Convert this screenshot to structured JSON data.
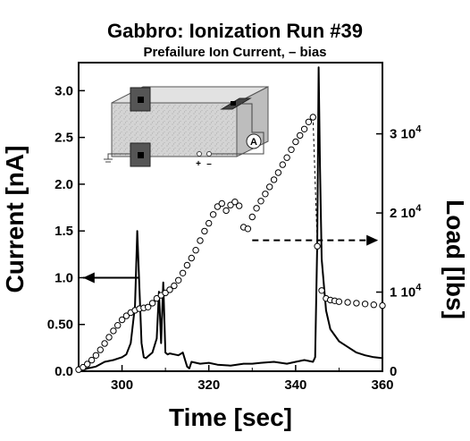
{
  "title": "Gabbro: Ionization Run #39",
  "subtitle": "Prefailure Ion Current, – bias",
  "chart_data": {
    "type": "line",
    "xlabel": "Time [sec]",
    "ylabel": "Current [nA]",
    "y2label": "Load [lbs]",
    "xlim": [
      290,
      360
    ],
    "ylim": [
      0,
      3.3
    ],
    "y2lim": [
      0,
      39000
    ],
    "xticks": [
      "300",
      "320",
      "340",
      "360"
    ],
    "yticks": [
      "0.0",
      "0.50",
      "1.0",
      "1.5",
      "2.0",
      "2.5",
      "3.0"
    ],
    "y2ticks": [
      {
        "base": "0",
        "exp": ""
      },
      {
        "base": "1 10",
        "exp": "4"
      },
      {
        "base": "2 10",
        "exp": "4"
      },
      {
        "base": "3 10",
        "exp": "4"
      }
    ],
    "grid": false,
    "series": [
      {
        "axis": "left",
        "style": "line",
        "x": [
          290,
          292,
          294,
          296,
          298,
          300,
          301,
          302,
          303,
          303.5,
          304,
          304.5,
          305,
          305.5,
          306,
          307,
          308,
          308.5,
          309,
          309.5,
          310,
          310.5,
          311,
          312,
          313,
          314,
          315,
          315.5,
          316,
          318,
          320,
          322,
          325,
          328,
          330,
          332,
          335,
          338,
          340,
          342,
          344,
          344.5,
          345,
          345.3,
          345.6,
          346,
          347,
          348,
          350,
          352,
          354,
          356,
          358,
          360
        ],
        "values": [
          0.0,
          0.03,
          0.05,
          0.1,
          0.12,
          0.15,
          0.18,
          0.3,
          0.7,
          1.5,
          0.9,
          0.3,
          0.15,
          0.14,
          0.16,
          0.2,
          0.35,
          0.85,
          0.3,
          0.95,
          0.2,
          0.18,
          0.19,
          0.18,
          0.17,
          0.2,
          0.05,
          0.03,
          0.1,
          0.08,
          0.09,
          0.07,
          0.06,
          0.08,
          0.08,
          0.09,
          0.1,
          0.08,
          0.1,
          0.12,
          0.1,
          0.15,
          1.4,
          3.25,
          2.2,
          1.2,
          0.65,
          0.45,
          0.32,
          0.26,
          0.2,
          0.17,
          0.15,
          0.14
        ]
      },
      {
        "axis": "right",
        "style": "markers",
        "x": [
          290,
          291,
          292,
          293,
          294,
          295,
          296,
          297,
          298,
          299,
          300,
          301,
          302,
          303,
          304,
          305,
          306,
          307,
          308,
          309,
          310,
          311,
          312,
          313,
          314,
          315,
          316,
          317,
          318,
          319,
          320,
          321,
          322,
          323,
          324,
          325,
          326,
          327,
          328,
          329,
          330,
          331,
          332,
          333,
          334,
          335,
          336,
          337,
          338,
          339,
          340,
          341,
          342,
          343,
          344,
          345,
          346,
          347,
          348,
          349,
          350,
          352,
          354,
          356,
          358,
          360
        ],
        "values": [
          200,
          500,
          900,
          1400,
          2000,
          2700,
          3500,
          4300,
          5100,
          5800,
          6500,
          7000,
          7400,
          7700,
          7900,
          8000,
          8100,
          8600,
          9200,
          9600,
          9900,
          10300,
          10800,
          11500,
          12400,
          13400,
          14300,
          15300,
          16500,
          17700,
          18700,
          19800,
          20800,
          21200,
          20300,
          21000,
          21400,
          20900,
          18200,
          18000,
          19500,
          20600,
          21500,
          22400,
          23300,
          24200,
          25100,
          26100,
          27000,
          28000,
          29000,
          29800,
          30600,
          31500,
          32100,
          15800,
          10200,
          9200,
          9000,
          8900,
          8800,
          8700,
          8600,
          8500,
          8400,
          8300
        ]
      }
    ],
    "annotations": [
      {
        "type": "arrow",
        "from": [
          304,
          1.0
        ],
        "to": [
          291,
          1.0
        ],
        "style": "solid"
      },
      {
        "type": "arrow",
        "from": [
          330,
          1.4
        ],
        "to": [
          359,
          1.4
        ],
        "style": "dashed"
      }
    ]
  },
  "inset": {
    "ammeter_label": "A",
    "polarity_plus": "+",
    "polarity_minus": "–"
  }
}
